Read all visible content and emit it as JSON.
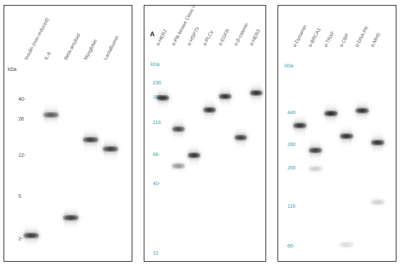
{
  "colors": {
    "band": "#111111",
    "tick_teal": "#3a9aa3",
    "tick_dark": "#3c3c3c",
    "label": "#5a5a5a",
    "border": "#2b2b2b"
  },
  "panels": [
    {
      "id": "panel-1",
      "letter": "",
      "unit": "kDa",
      "tick_style": "dark",
      "lane_labels": [
        "Insulin (non-reduced)",
        "IL-6",
        "Beta-amyloid",
        "Myoglobin",
        "Lactalbumin"
      ],
      "ticks": [
        {
          "label": "40-",
          "value": 40
        },
        {
          "label": "26",
          "value": 26
        },
        {
          "label": "12-",
          "value": 12
        },
        {
          "label": "5",
          "value": 5
        },
        {
          "label": "2-",
          "value": 2
        }
      ],
      "bands": [
        {
          "lane": 0,
          "kda": 2.2,
          "intensity": 0.85
        },
        {
          "lane": 1,
          "kda": 29,
          "intensity": 0.7
        },
        {
          "lane": 2,
          "kda": 3.2,
          "intensity": 0.85
        },
        {
          "lane": 3,
          "kda": 17,
          "intensity": 0.85
        },
        {
          "lane": 4,
          "kda": 14,
          "intensity": 0.85
        }
      ]
    },
    {
      "id": "panel-2",
      "letter": "A",
      "unit": "kDa",
      "tick_style": "teal",
      "lane_labels": [
        "α-HER2",
        "α-Ptk kinase Class III",
        "α-HSP70",
        "α-PLCγ",
        "α-EGFR",
        "α-β-catenin",
        "α-HER3"
      ],
      "ticks": [
        {
          "label": "230",
          "value": 230
        },
        {
          "label": "180",
          "value": 180
        },
        {
          "label": "116",
          "value": 116
        },
        {
          "label": "66-",
          "value": 66
        },
        {
          "label": "40-",
          "value": 40
        },
        {
          "label": "12",
          "value": 12
        }
      ],
      "bands": [
        {
          "lane": 0,
          "kda": 180,
          "intensity": 0.9
        },
        {
          "lane": 1,
          "kda": 105,
          "intensity": 0.8
        },
        {
          "lane": 1,
          "kda": 55,
          "intensity": 0.45
        },
        {
          "lane": 2,
          "kda": 66,
          "intensity": 0.9
        },
        {
          "lane": 3,
          "kda": 145,
          "intensity": 0.9
        },
        {
          "lane": 4,
          "kda": 185,
          "intensity": 0.9
        },
        {
          "lane": 5,
          "kda": 90,
          "intensity": 0.85
        },
        {
          "lane": 6,
          "kda": 195,
          "intensity": 0.9
        }
      ]
    },
    {
      "id": "panel-3",
      "letter": "",
      "unit": "kDa",
      "tick_style": "teal",
      "lane_labels": [
        "α-Dynamin",
        "α-BRCA1",
        "α-TRAF",
        "α-CBP",
        "α-DNA-PK",
        "α-MHS"
      ],
      "ticks": [
        {
          "label": "440",
          "value": 440
        },
        {
          "label": "280",
          "value": 280
        },
        {
          "label": "200",
          "value": 200
        },
        {
          "label": "116",
          "value": 116
        },
        {
          "label": "66-",
          "value": 66
        }
      ],
      "bands": [
        {
          "lane": 0,
          "kda": 370,
          "intensity": 0.9
        },
        {
          "lane": 1,
          "kda": 260,
          "intensity": 0.85
        },
        {
          "lane": 1,
          "kda": 200,
          "intensity": 0.2
        },
        {
          "lane": 2,
          "kda": 440,
          "intensity": 0.95
        },
        {
          "lane": 3,
          "kda": 320,
          "intensity": 0.9
        },
        {
          "lane": 3,
          "kda": 68,
          "intensity": 0.15
        },
        {
          "lane": 4,
          "kda": 460,
          "intensity": 0.9
        },
        {
          "lane": 5,
          "kda": 290,
          "intensity": 0.9
        },
        {
          "lane": 5,
          "kda": 125,
          "intensity": 0.2
        }
      ]
    }
  ]
}
